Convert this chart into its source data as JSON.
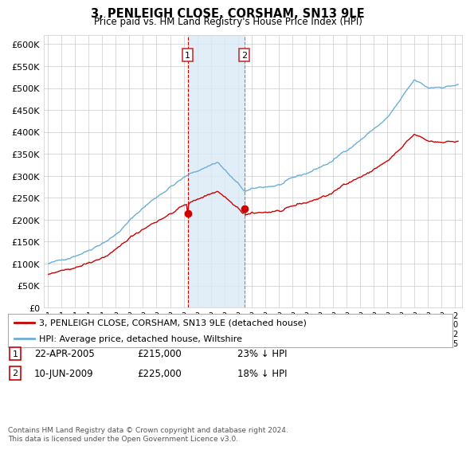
{
  "title": "3, PENLEIGH CLOSE, CORSHAM, SN13 9LE",
  "subtitle": "Price paid vs. HM Land Registry's House Price Index (HPI)",
  "ylim": [
    0,
    620000
  ],
  "xlim_start": 1994.7,
  "xlim_end": 2025.5,
  "hpi_color": "#6baed6",
  "price_color": "#cc0000",
  "purchase1_year": 2005,
  "purchase1_month": 4,
  "purchase1_price": 215000,
  "purchase2_year": 2009,
  "purchase2_month": 6,
  "purchase2_price": 225000,
  "vline1_color": "#cc0000",
  "vline2_color": "#888888",
  "shading_color": "#daeaf7",
  "legend_red_label": "3, PENLEIGH CLOSE, CORSHAM, SN13 9LE (detached house)",
  "legend_blue_label": "HPI: Average price, detached house, Wiltshire",
  "footnote": "Contains HM Land Registry data © Crown copyright and database right 2024.\nThis data is licensed under the Open Government Licence v3.0.",
  "background_color": "#ffffff",
  "grid_color": "#cccccc"
}
